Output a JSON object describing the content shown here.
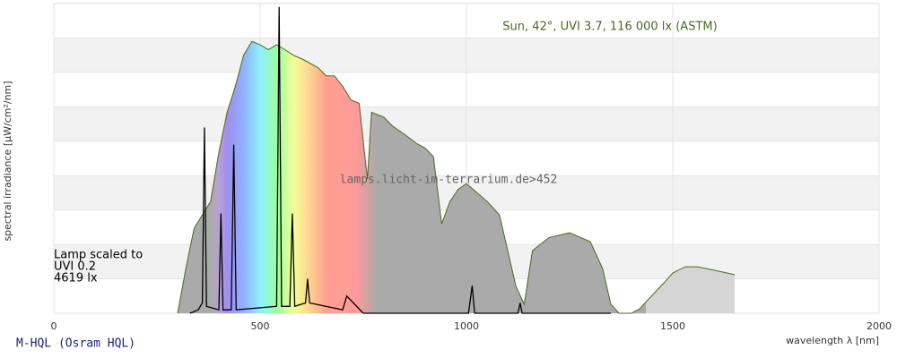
{
  "chart_data": {
    "type": "area",
    "title": "Sun, 42°, UVI 3.7, 116 000 lx (ASTM)",
    "watermark": "lamps.licht-im-terrarium.de>452",
    "annotations": [
      "Lamp scaled to",
      "UVI 0.2",
      "4619 lx"
    ],
    "footer": "M-HQL (Osram HQL)",
    "xlabel": "wavelength λ [nm]",
    "ylabel": "spectral irradiance [µW/cm²/nm]",
    "xlim": [
      0,
      2000
    ],
    "xticks": [
      0,
      500,
      1000,
      1500,
      2000
    ],
    "ylim": [
      0,
      9
    ],
    "grid": "bands",
    "series": [
      {
        "color": "#4a6a1f",
        "fill": "#aaaaaa",
        "x": [
          300,
          320,
          340,
          360,
          380,
          400,
          420,
          440,
          460,
          480,
          500,
          520,
          540,
          560,
          580,
          600,
          620,
          640,
          660,
          680,
          700,
          720,
          740,
          760,
          770,
          800,
          820,
          850,
          880,
          900,
          920,
          940,
          960,
          980,
          1000,
          1050,
          1080,
          1100,
          1120,
          1140,
          1160,
          1200,
          1250,
          1300,
          1330,
          1350,
          1370,
          1400,
          1420,
          1450,
          1480,
          1500,
          1530,
          1560,
          1600,
          1650
        ],
        "values": [
          0,
          1.3,
          2.47,
          2.86,
          3.25,
          4.68,
          5.84,
          6.6,
          7.5,
          7.9,
          7.8,
          7.66,
          7.8,
          7.66,
          7.5,
          7.4,
          7.27,
          7.14,
          6.9,
          6.9,
          6.6,
          6.2,
          6.1,
          3.9,
          5.84,
          5.7,
          5.45,
          5.2,
          4.93,
          4.8,
          4.55,
          2.6,
          3.25,
          3.6,
          3.77,
          3.25,
          2.86,
          1.82,
          0.78,
          0.26,
          1.82,
          2.2,
          2.34,
          2.08,
          1.3,
          0.26,
          0,
          0,
          0.13,
          0.52,
          0.9,
          1.17,
          1.35,
          1.35,
          1.25,
          1.12
        ]
      },
      {
        "color": "#000000",
        "x": [
          330,
          350,
          360,
          365,
          370,
          400,
          405,
          410,
          430,
          436,
          442,
          540,
          546,
          552,
          572,
          578,
          584,
          610,
          615,
          620,
          700,
          710,
          750,
          1005,
          1014,
          1020,
          1125,
          1130,
          1135,
          1350
        ],
        "values": [
          0,
          0.1,
          0.3,
          5.4,
          0.2,
          0.1,
          2.9,
          0.1,
          0.1,
          4.9,
          0.1,
          0.2,
          8.9,
          0.2,
          0.2,
          2.9,
          0.2,
          0.3,
          1.0,
          0.3,
          0.1,
          0.5,
          0,
          0,
          0.8,
          0,
          0,
          0.3,
          0,
          0
        ]
      }
    ]
  }
}
